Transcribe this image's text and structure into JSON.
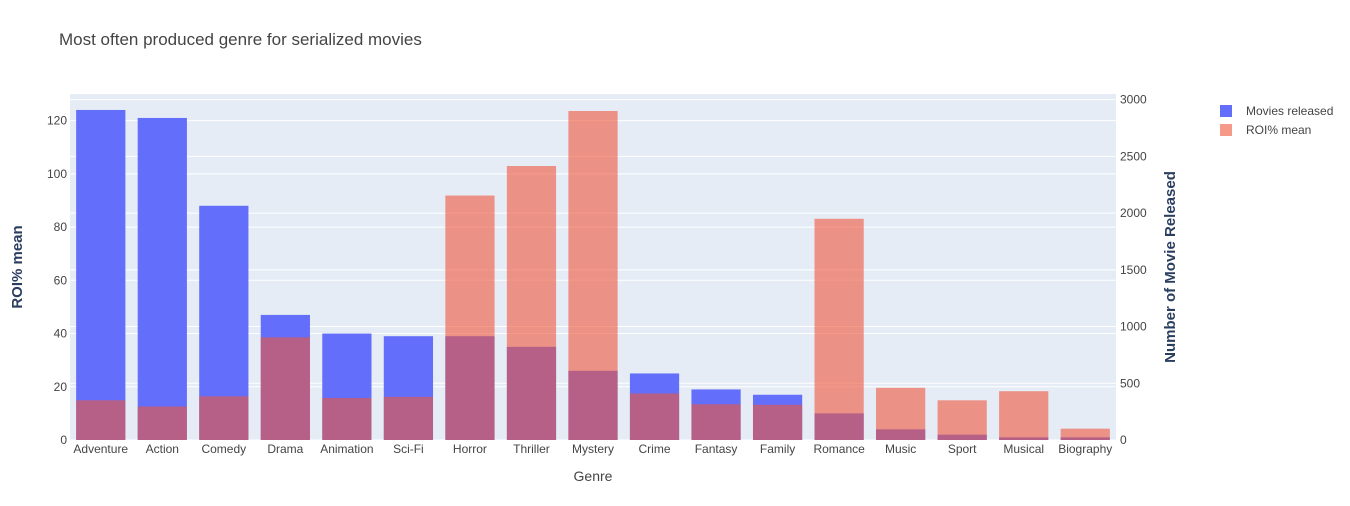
{
  "chart_data": {
    "type": "bar",
    "title": "Most often produced genre for serialized movies",
    "xlabel": "Genre",
    "ylabel_left": "ROI% mean",
    "ylabel_right": "Number of Movie Released",
    "categories": [
      "Adventure",
      "Action",
      "Comedy",
      "Drama",
      "Animation",
      "Sci-Fi",
      "Horror",
      "Thriller",
      "Mystery",
      "Crime",
      "Fantasy",
      "Family",
      "Romance",
      "Music",
      "Sport",
      "Musical",
      "Biography"
    ],
    "series": [
      {
        "name": "Movies released",
        "axis": "left",
        "color": "#636efa",
        "values": [
          124,
          121,
          88,
          47,
          40,
          39,
          39,
          35,
          26,
          25,
          19,
          17,
          10,
          4,
          2,
          1,
          1
        ]
      },
      {
        "name": "ROI% mean",
        "axis": "right",
        "color": "#ef553b",
        "values": [
          350,
          295,
          385,
          905,
          370,
          380,
          2155,
          2415,
          2900,
          410,
          315,
          310,
          1950,
          460,
          350,
          430,
          100
        ]
      }
    ],
    "ylim_left": [
      0,
      130
    ],
    "ylim_right": [
      0,
      3050
    ],
    "yticks_left": [
      0,
      20,
      40,
      60,
      80,
      100,
      120
    ],
    "yticks_right": [
      0,
      500,
      1000,
      1500,
      2000,
      2500,
      3000
    ],
    "grid": true,
    "legend_position": "top-right"
  }
}
